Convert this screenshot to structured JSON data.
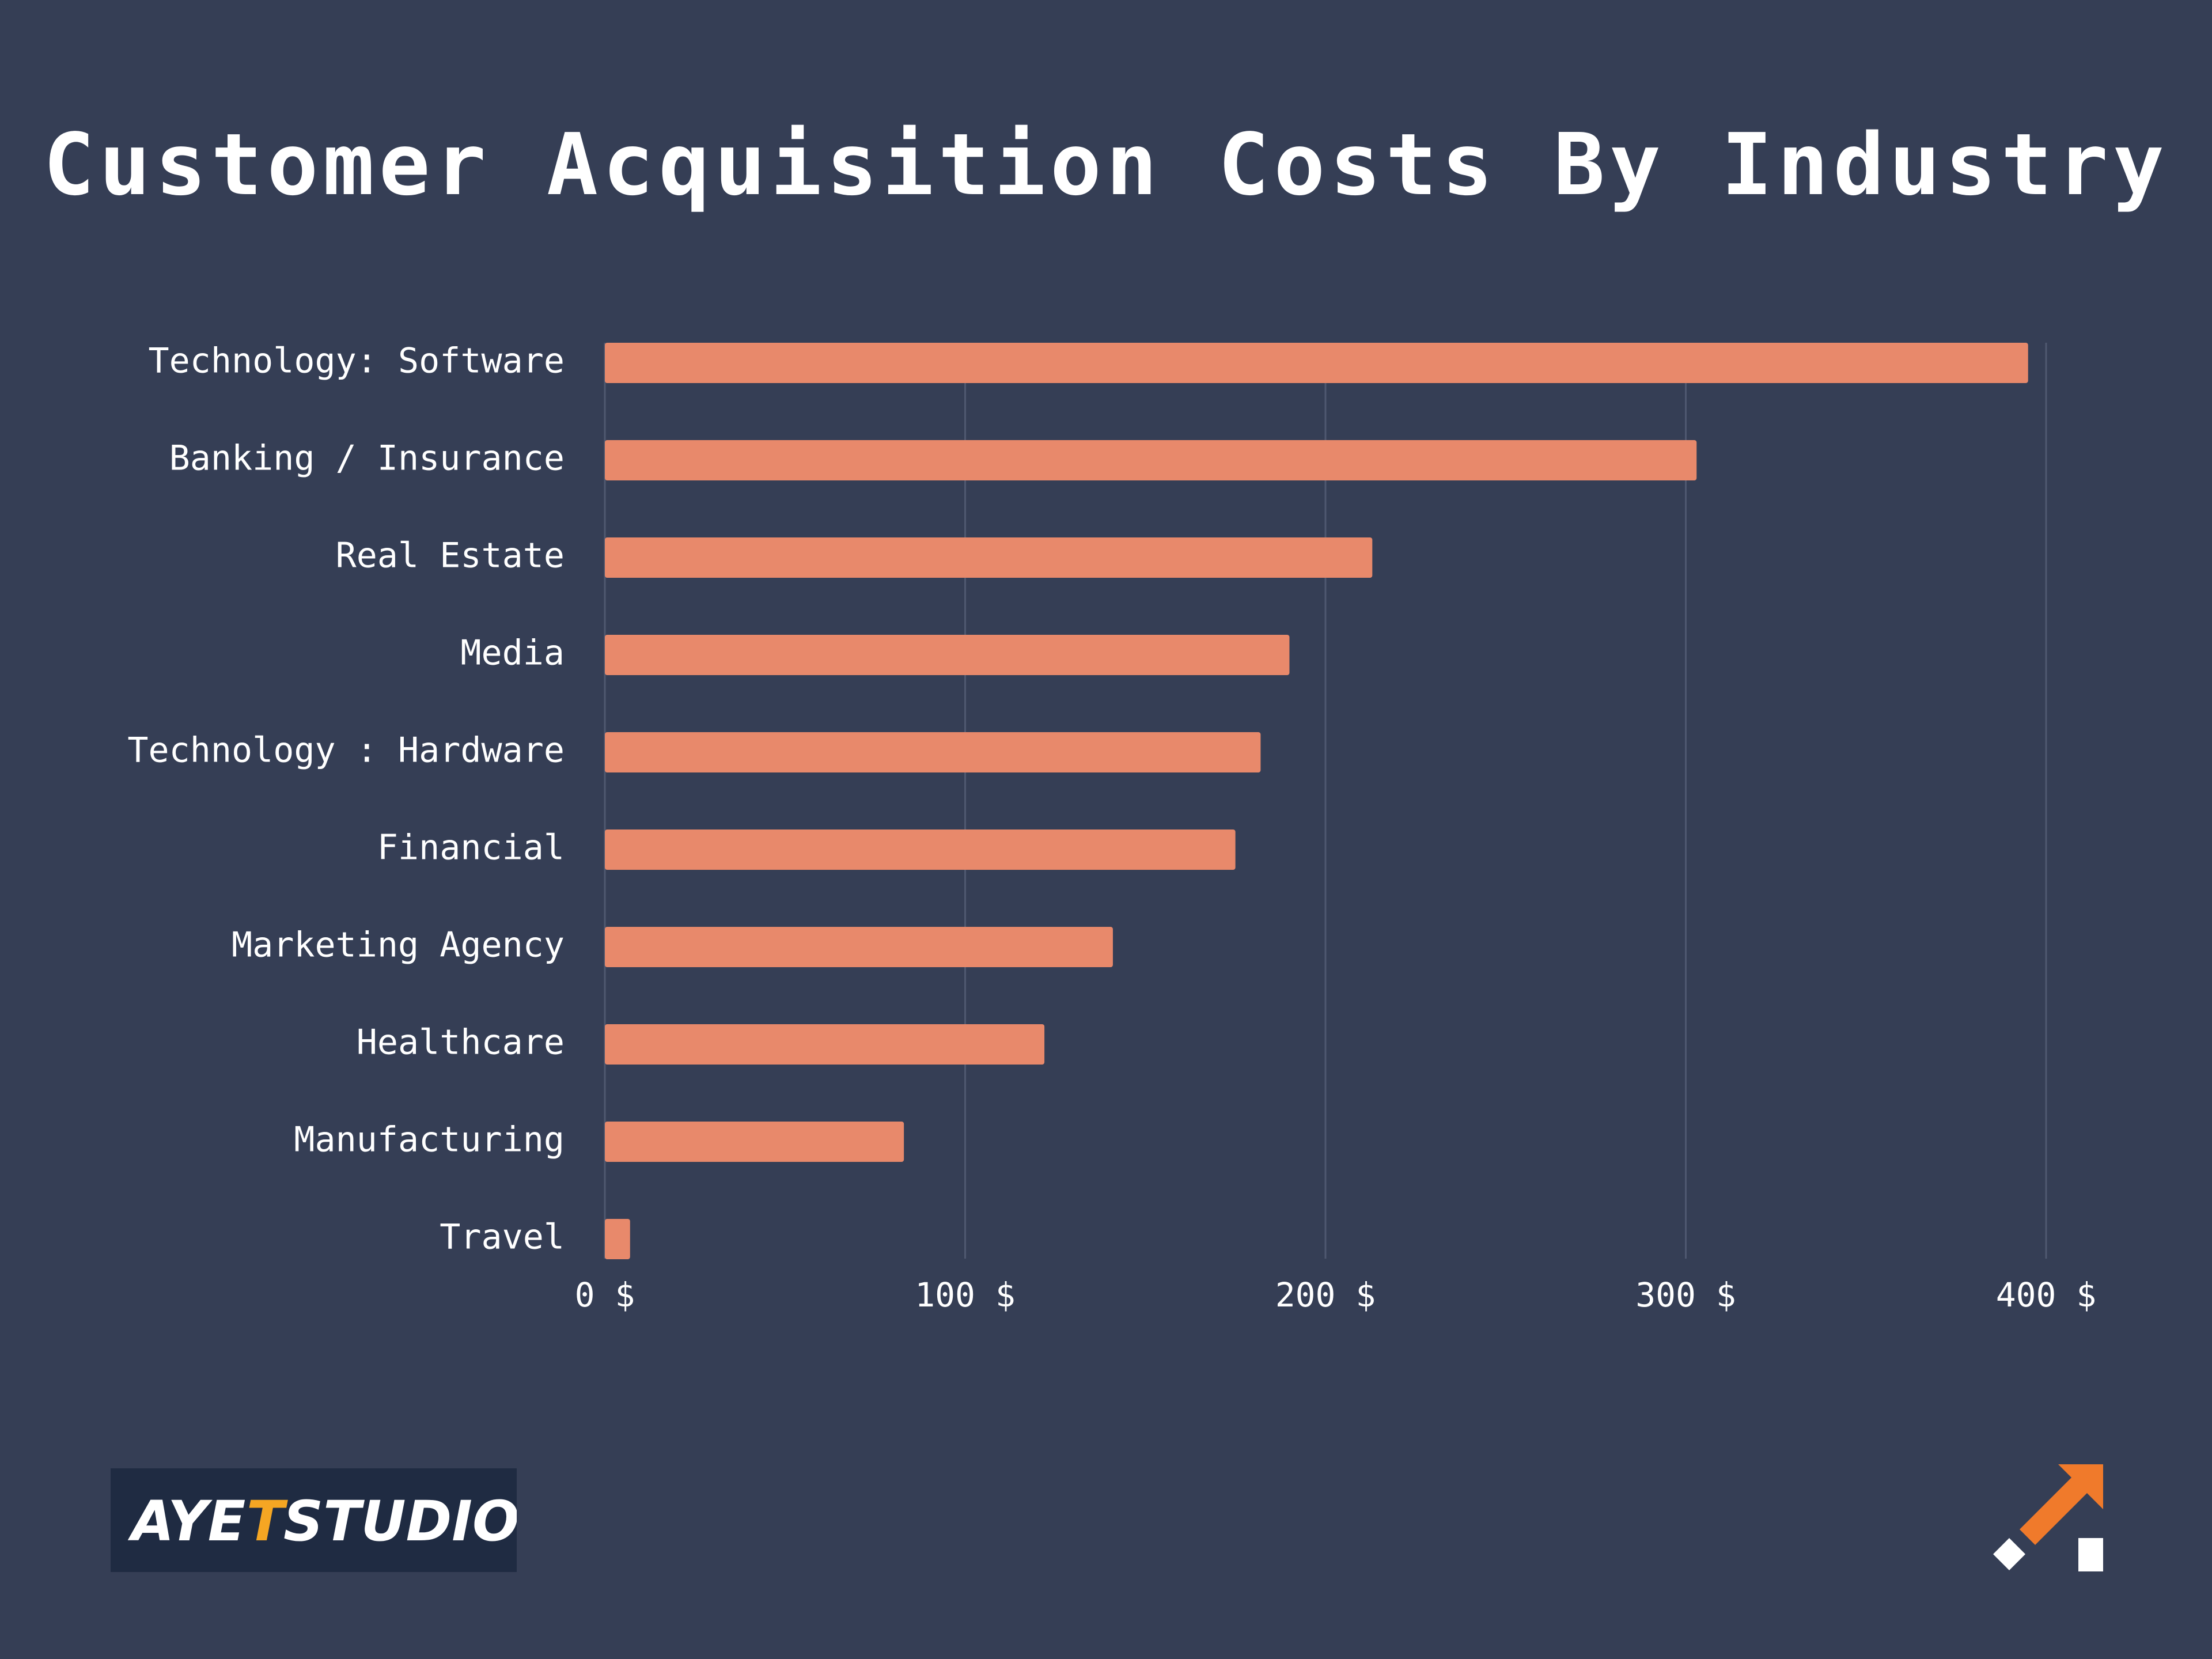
{
  "title": "Customer Acquisition Costs By Industry",
  "colors": {
    "background": "#353e55",
    "bar": "#e8896b",
    "grid": "#4f5870",
    "text": "#ffffff",
    "logo_badge": "#1f2b42",
    "logo_accent": "#f07a2b"
  },
  "chart_data": {
    "type": "bar",
    "orientation": "horizontal",
    "title": "Customer Acquisition Costs By Industry",
    "xlabel": "",
    "ylabel": "",
    "categories": [
      "Technology: Software",
      "Banking / Insurance",
      "Real Estate",
      "Media",
      "Technology : Hardware",
      "Financial",
      "Marketing Agency",
      "Healthcare",
      "Manufacturing",
      "Travel"
    ],
    "values": [
      395,
      303,
      213,
      190,
      182,
      175,
      141,
      122,
      83,
      7
    ],
    "xlim": [
      0,
      400
    ],
    "x_ticks": [
      0,
      100,
      200,
      300,
      400
    ],
    "x_tick_labels": [
      "0 $",
      "100 $",
      "200 $",
      "300 $",
      "400 $"
    ],
    "grid": "vertical",
    "legend": "none"
  },
  "logos": {
    "brand_text": "AYE T STUDIOS",
    "arrow_logo_icon": "diagonal-arrow-logo-icon"
  }
}
